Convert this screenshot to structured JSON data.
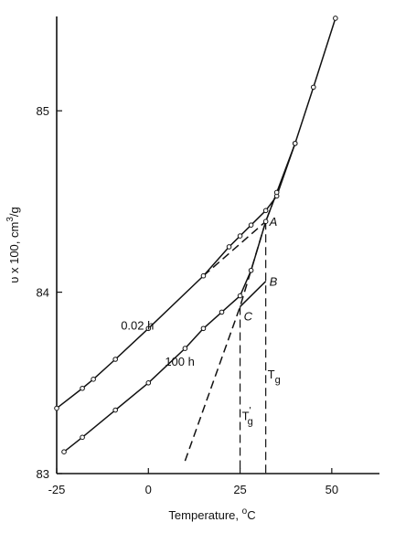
{
  "chart_data": {
    "type": "line",
    "xlabel": "Temperature, °C",
    "xlabel_parts": {
      "text": "Temperature, ",
      "sup": "o",
      "unit": "C"
    },
    "ylabel": "υ x 100, cm³/g",
    "ylabel_parts": {
      "text": "υ x 100, cm",
      "sup": "3",
      "unit": "/g"
    },
    "xlim": [
      -25,
      63
    ],
    "ylim": [
      83,
      85.52
    ],
    "x_ticks": [
      -25,
      0,
      25,
      50
    ],
    "x_tick_labels": [
      "-25",
      "0",
      "25",
      "50"
    ],
    "y_ticks": [
      83,
      84,
      85
    ],
    "y_tick_labels": [
      "83",
      "84",
      "85"
    ],
    "grid": false,
    "series": [
      {
        "name": "0.02 h",
        "style": "solid",
        "points": [
          [
            -25,
            83.36
          ],
          [
            -18,
            83.47
          ],
          [
            -15,
            83.52
          ],
          [
            -9,
            83.63
          ],
          [
            0,
            83.8
          ],
          [
            15,
            84.09
          ],
          [
            22,
            84.25
          ],
          [
            25,
            84.31
          ],
          [
            28,
            84.37
          ],
          [
            32,
            84.45
          ],
          [
            35,
            84.53
          ],
          [
            40,
            84.82
          ]
        ]
      },
      {
        "name": "100 h",
        "style": "solid",
        "points": [
          [
            -23,
            83.12
          ],
          [
            -18,
            83.2
          ],
          [
            -9,
            83.35
          ],
          [
            0,
            83.5
          ],
          [
            10,
            83.69
          ],
          [
            15,
            83.8
          ],
          [
            20,
            83.89
          ],
          [
            25,
            83.98
          ],
          [
            28,
            84.12
          ],
          [
            32,
            84.39
          ],
          [
            35,
            84.55
          ],
          [
            40,
            84.82
          ],
          [
            45,
            85.13
          ],
          [
            51,
            85.51
          ]
        ]
      },
      {
        "name": "equilibrium extrapolation",
        "style": "dashed",
        "points": [
          [
            10,
            83.07
          ],
          [
            25,
            83.92
          ],
          [
            32,
            84.39
          ],
          [
            35,
            84.55
          ]
        ]
      },
      {
        "name": "A-tangent",
        "style": "dashed",
        "points": [
          [
            15,
            84.09
          ],
          [
            32,
            84.39
          ]
        ]
      },
      {
        "name": "B-line",
        "style": "solid",
        "points": [
          [
            25,
            83.92
          ],
          [
            32,
            84.06
          ]
        ]
      }
    ],
    "annotations": [
      {
        "id": "A",
        "text": "A",
        "x": 32.5,
        "y": 84.39
      },
      {
        "id": "B",
        "text": "B",
        "x": 32.5,
        "y": 84.06
      },
      {
        "id": "C",
        "text": "C",
        "x": 25.5,
        "y": 83.87
      },
      {
        "id": "label-002h",
        "text": "0.02 h",
        "x": -8,
        "y": 83.82
      },
      {
        "id": "label-100h",
        "text": "100 h",
        "x": 4,
        "y": 83.62
      },
      {
        "id": "Tg",
        "text": "T",
        "sub": "g",
        "x": 32,
        "y": 83.55
      },
      {
        "id": "Tg-prime",
        "text": "T",
        "sub": "g",
        "sup": "'",
        "x": 25,
        "y": 83.32
      }
    ],
    "vertical_markers": [
      {
        "name": "Tg",
        "x": 32,
        "y_top": 84.39,
        "y_bottom": 83
      },
      {
        "name": "Tg-prime",
        "x": 25,
        "y_top": 83.92,
        "y_bottom": 83
      }
    ]
  }
}
